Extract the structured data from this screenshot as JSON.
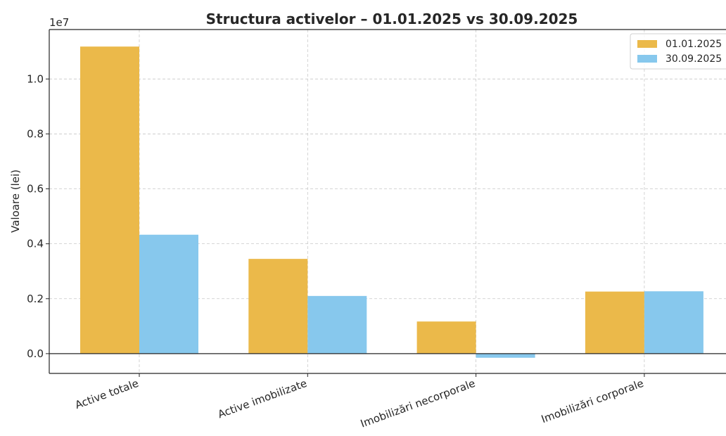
{
  "chart_data": {
    "type": "bar",
    "title": "Structura activelor – 01.01.2025 vs 30.09.2025",
    "ylabel": "Valoare (lei)",
    "xlabel": "",
    "offset_label": "1e7",
    "categories": [
      "Active totale",
      "Active imobilizate",
      "Imobilizări necorporale",
      "Imobilizări corporale"
    ],
    "series": [
      {
        "name": "01.01.2025",
        "color": "#ebb94a",
        "values": [
          11180000,
          3450000,
          1170000,
          2260000
        ]
      },
      {
        "name": "30.09.2025",
        "color": "#87c8ed",
        "values": [
          4330000,
          2100000,
          -150000,
          2270000
        ]
      }
    ],
    "ylim": [
      -720000,
      11800000
    ],
    "yticks": [
      0,
      2000000,
      4000000,
      6000000,
      8000000,
      10000000
    ],
    "ytick_labels": [
      "0.0",
      "0.2",
      "0.4",
      "0.6",
      "0.8",
      "1.0"
    ],
    "grid": true,
    "legend_position": "top-right"
  }
}
